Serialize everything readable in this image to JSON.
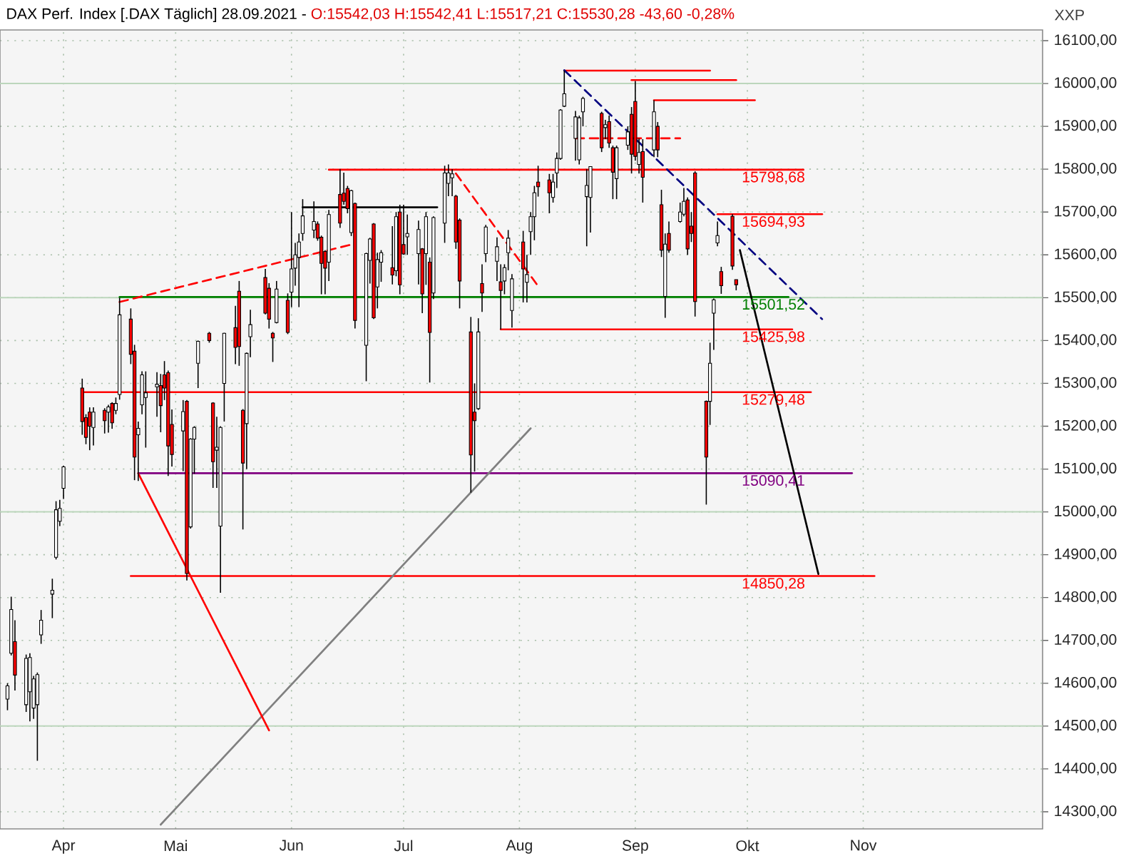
{
  "chart_data": {
    "type": "candlestick",
    "title": "DAX Perf. Index [.DAX Täglich] 28.09.2021 -",
    "subtitle": "O:15542,03 H:15542,41 L:15517,21 C:15530,28 -43,60 -0,28%",
    "ylabel": "XXP",
    "x": [
      "2021-03-17",
      "2021-03-18",
      "2021-03-19",
      "2021-03-22",
      "2021-03-23",
      "2021-03-24",
      "2021-03-25",
      "2021-03-26",
      "2021-03-29",
      "2021-03-30",
      "2021-03-31",
      "2021-04-01",
      "2021-04-06",
      "2021-04-07",
      "2021-04-08",
      "2021-04-09",
      "2021-04-12",
      "2021-04-13",
      "2021-04-14",
      "2021-04-15",
      "2021-04-16",
      "2021-04-19",
      "2021-04-20",
      "2021-04-21",
      "2021-04-22",
      "2021-04-23",
      "2021-04-26",
      "2021-04-27",
      "2021-04-28",
      "2021-04-29",
      "2021-04-30",
      "2021-05-03",
      "2021-05-04",
      "2021-05-05",
      "2021-05-06",
      "2021-05-07",
      "2021-05-10",
      "2021-05-11",
      "2021-05-12",
      "2021-05-13",
      "2021-05-14",
      "2021-05-17",
      "2021-05-18",
      "2021-05-19",
      "2021-05-20",
      "2021-05-21",
      "2021-05-25",
      "2021-05-26",
      "2021-05-27",
      "2021-05-28",
      "2021-05-31",
      "2021-06-01",
      "2021-06-02",
      "2021-06-03",
      "2021-06-04",
      "2021-06-07",
      "2021-06-08",
      "2021-06-09",
      "2021-06-10",
      "2021-06-11",
      "2021-06-14",
      "2021-06-15",
      "2021-06-16",
      "2021-06-17",
      "2021-06-18",
      "2021-06-21",
      "2021-06-22",
      "2021-06-23",
      "2021-06-24",
      "2021-06-25",
      "2021-06-28",
      "2021-06-29",
      "2021-06-30",
      "2021-07-01",
      "2021-07-02",
      "2021-07-05",
      "2021-07-06",
      "2021-07-07",
      "2021-07-08",
      "2021-07-09",
      "2021-07-12",
      "2021-07-13",
      "2021-07-14",
      "2021-07-15",
      "2021-07-16",
      "2021-07-19",
      "2021-07-20",
      "2021-07-21",
      "2021-07-22",
      "2021-07-23",
      "2021-07-26",
      "2021-07-27",
      "2021-07-28",
      "2021-07-29",
      "2021-07-30",
      "2021-08-02",
      "2021-08-03",
      "2021-08-04",
      "2021-08-05",
      "2021-08-06",
      "2021-08-09",
      "2021-08-10",
      "2021-08-11",
      "2021-08-12",
      "2021-08-13",
      "2021-08-16",
      "2021-08-17",
      "2021-08-18",
      "2021-08-19",
      "2021-08-20",
      "2021-08-23",
      "2021-08-24",
      "2021-08-25",
      "2021-08-26",
      "2021-08-27",
      "2021-08-30",
      "2021-08-31",
      "2021-09-01",
      "2021-09-02",
      "2021-09-03",
      "2021-09-06",
      "2021-09-07",
      "2021-09-08",
      "2021-09-09",
      "2021-09-10",
      "2021-09-13",
      "2021-09-14",
      "2021-09-15",
      "2021-09-16",
      "2021-09-17",
      "2021-09-20",
      "2021-09-21",
      "2021-09-22",
      "2021-09-23",
      "2021-09-24",
      "2021-09-27",
      "2021-09-28"
    ],
    "ohlc": [
      [
        14563,
        14600,
        14537,
        14594
      ],
      [
        14670,
        14802,
        14665,
        14772
      ],
      [
        14697,
        14747,
        14583,
        14619
      ],
      [
        14550,
        14667,
        14533,
        14658
      ],
      [
        14580,
        14670,
        14511,
        14660
      ],
      [
        14542,
        14617,
        14517,
        14610
      ],
      [
        14550,
        14625,
        14419,
        14620
      ],
      [
        14713,
        14771,
        14692,
        14747
      ],
      [
        14808,
        14844,
        14752,
        14817
      ],
      [
        14894,
        15025,
        14889,
        15005
      ],
      [
        14978,
        15028,
        14967,
        15008
      ],
      [
        15055,
        15108,
        15030,
        15105
      ],
      [
        15289,
        15311,
        15180,
        15211
      ],
      [
        15220,
        15228,
        15158,
        15174
      ],
      [
        15233,
        15244,
        15144,
        15200
      ],
      [
        15197,
        15244,
        15155,
        15233
      ],
      [
        15237,
        15242,
        15183,
        15213
      ],
      [
        15233,
        15250,
        15185,
        15245
      ],
      [
        15253,
        15256,
        15194,
        15208
      ],
      [
        15237,
        15267,
        15228,
        15253
      ],
      [
        15274,
        15500,
        15262,
        15460
      ],
      [
        15450,
        15475,
        15345,
        15368
      ],
      [
        15375,
        15390,
        15074,
        15128
      ],
      [
        15180,
        15211,
        15072,
        15195
      ],
      [
        15250,
        15328,
        15228,
        15320
      ],
      [
        15267,
        15328,
        15150,
        15278
      ],
      [
        15292,
        15326,
        15222,
        15298
      ],
      [
        15295,
        15322,
        15186,
        15248
      ],
      [
        15320,
        15352,
        15261,
        15289
      ],
      [
        15325,
        15330,
        15084,
        15154
      ],
      [
        15204,
        15239,
        15106,
        15134
      ],
      [
        15189,
        15261,
        15095,
        15234
      ],
      [
        15258,
        15261,
        14840,
        14856
      ],
      [
        14965,
        15172,
        14961,
        15170
      ],
      [
        15170,
        15200,
        15089,
        15197
      ],
      [
        15347,
        15400,
        15289,
        15398
      ],
      [
        15417,
        15420,
        15395,
        15400
      ],
      [
        15254,
        15256,
        15056,
        15117
      ],
      [
        15144,
        15222,
        15056,
        15151
      ],
      [
        14967,
        15200,
        14811,
        15197
      ],
      [
        15300,
        15418,
        15211,
        15417
      ],
      [
        15430,
        15481,
        15345,
        15384
      ],
      [
        15515,
        15539,
        15341,
        15386
      ],
      [
        15237,
        15240,
        14959,
        15114
      ],
      [
        15206,
        15372,
        15100,
        15370
      ],
      [
        15409,
        15472,
        15361,
        15437
      ],
      [
        15547,
        15567,
        15461,
        15464
      ],
      [
        15522,
        15534,
        15428,
        15450
      ],
      [
        15417,
        15420,
        15350,
        15406
      ],
      [
        15442,
        15539,
        15440,
        15520
      ],
      [
        15494,
        15510,
        15415,
        15419
      ],
      [
        15513,
        15700,
        15478,
        15567
      ],
      [
        15569,
        15628,
        15528,
        15600
      ],
      [
        15594,
        15650,
        15478,
        15630
      ],
      [
        15650,
        15730,
        15633,
        15691
      ],
      [
        15658,
        15725,
        15639,
        15678
      ],
      [
        15672,
        15678,
        15633,
        15639
      ],
      [
        15641,
        15645,
        15508,
        15580
      ],
      [
        15608,
        15611,
        15508,
        15569
      ],
      [
        15583,
        15705,
        15539,
        15694
      ],
      [
        15741,
        15800,
        15663,
        15674
      ],
      [
        15744,
        15792,
        15717,
        15725
      ],
      [
        15755,
        15761,
        15697,
        15708
      ],
      [
        15652,
        15752,
        15644,
        15750
      ],
      [
        15720,
        15722,
        15428,
        15447
      ],
      [
        15389,
        15605,
        15305,
        15603
      ],
      [
        15587,
        15640,
        15533,
        15637
      ],
      [
        15672,
        15674,
        15450,
        15453
      ],
      [
        15525,
        15605,
        15475,
        15589
      ],
      [
        15583,
        15611,
        15537,
        15605
      ],
      [
        15570,
        15667,
        15531,
        15553
      ],
      [
        15563,
        15700,
        15550,
        15689
      ],
      [
        15700,
        15717,
        15508,
        15530
      ],
      [
        15624,
        15717,
        15600,
        15602
      ],
      [
        15642,
        15694,
        15600,
        15650
      ],
      [
        15603,
        15680,
        15531,
        15659
      ],
      [
        15614,
        15616,
        15464,
        15509
      ],
      [
        15603,
        15700,
        15530,
        15689
      ],
      [
        15583,
        15594,
        15302,
        15419
      ],
      [
        15511,
        15690,
        15497,
        15687
      ],
      [
        15674,
        15808,
        15628,
        15791
      ],
      [
        15767,
        15811,
        15737,
        15791
      ],
      [
        15780,
        15800,
        15737,
        15789
      ],
      [
        15737,
        15740,
        15614,
        15630
      ],
      [
        15681,
        15685,
        15475,
        15539
      ],
      [
        15420,
        15455,
        15045,
        15133
      ],
      [
        15233,
        15300,
        15094,
        15213
      ],
      [
        15241,
        15452,
        15238,
        15420
      ],
      [
        15533,
        15578,
        15467,
        15511
      ],
      [
        15603,
        15670,
        15583,
        15665
      ],
      [
        15585,
        15641,
        15539,
        15619
      ],
      [
        15537,
        15578,
        15426,
        15517
      ],
      [
        15539,
        15578,
        15508,
        15570
      ],
      [
        15605,
        15658,
        15564,
        15639
      ],
      [
        15470,
        15555,
        15430,
        15544
      ],
      [
        15630,
        15656,
        15489,
        15567
      ],
      [
        15536,
        15600,
        15489,
        15554
      ],
      [
        15654,
        15700,
        15600,
        15689
      ],
      [
        15689,
        15761,
        15634,
        15745
      ],
      [
        15770,
        15808,
        15736,
        15759
      ],
      [
        15775,
        15789,
        15697,
        15745
      ],
      [
        15734,
        15789,
        15722,
        15770
      ],
      [
        15791,
        15839,
        15756,
        15825
      ],
      [
        15825,
        15940,
        15822,
        15938
      ],
      [
        15947,
        16030,
        15945,
        15976
      ],
      [
        15872,
        15936,
        15820,
        15922
      ],
      [
        15822,
        15925,
        15811,
        15920
      ],
      [
        15934,
        15969,
        15900,
        15965
      ],
      [
        15736,
        15800,
        15620,
        15762
      ],
      [
        15734,
        15806,
        15652,
        15806
      ],
      [
        15930,
        15934,
        15840,
        15850
      ],
      [
        15897,
        15915,
        15870,
        15904
      ],
      [
        15911,
        15925,
        15850,
        15861
      ],
      [
        15850,
        15855,
        15730,
        15793
      ],
      [
        15778,
        15855,
        15730,
        15850
      ],
      [
        15856,
        15900,
        15845,
        15887
      ],
      [
        15928,
        15945,
        15790,
        15835
      ],
      [
        15958,
        16006,
        15820,
        15830
      ],
      [
        15811,
        15872,
        15790,
        15839
      ],
      [
        15841,
        15870,
        15722,
        15781
      ],
      [
        15845,
        15961,
        15828,
        15934
      ],
      [
        15900,
        15910,
        15828,
        15845
      ],
      [
        15717,
        15752,
        15595,
        15611
      ],
      [
        15503,
        15650,
        15453,
        15625
      ],
      [
        15650,
        15678,
        15605,
        15611
      ],
      [
        15678,
        15722,
        15675,
        15700
      ],
      [
        15695,
        15756,
        15690,
        15725
      ],
      [
        15728,
        15734,
        15600,
        15614
      ],
      [
        15667,
        15700,
        15630,
        15650
      ],
      [
        15791,
        15795,
        15456,
        15491
      ],
      [
        15258,
        15260,
        15017,
        15128
      ],
      [
        15258,
        15395,
        15203,
        15347
      ],
      [
        15464,
        15498,
        15378,
        15495
      ],
      [
        15628,
        15678,
        15620,
        15645
      ],
      [
        15561,
        15572,
        15509,
        15528
      ],
      [
        15690,
        15695,
        15565,
        15574
      ],
      [
        15542.03,
        15542.41,
        15517.21,
        15530.28
      ]
    ],
    "colors": [
      "#ffffff",
      "#ffffff",
      "#ff0000",
      "#ffffff",
      "#ffffff",
      "#ffffff",
      "#ffffff",
      "#ffffff",
      "#ffffff",
      "#ffffff",
      "#ffffff",
      "#ffffff",
      "#ff0000",
      "#ff0000",
      "#ff0000",
      "#ffffff",
      "#ff0000",
      "#ffffff",
      "#ff0000",
      "#ffffff",
      "#ffffff",
      "#ff0000",
      "#ff0000",
      "#ffffff",
      "#ffffff",
      "#ffffff",
      "#ffffff",
      "#ff0000",
      "#ff0000",
      "#ff0000",
      "#ff0000",
      "#ffffff",
      "#ff0000",
      "#ffffff",
      "#ffffff",
      "#ffffff",
      "#ff0000",
      "#ff0000",
      "#ffffff",
      "#ffffff",
      "#ffffff",
      "#ff0000",
      "#ff0000",
      "#ff0000",
      "#ffffff",
      "#ffffff",
      "#ff0000",
      "#ff0000",
      "#ff0000",
      "#ffffff",
      "#ff0000",
      "#ffffff",
      "#ffffff",
      "#ffffff",
      "#ffffff",
      "#ffffff",
      "#ff0000",
      "#ff0000",
      "#ff0000",
      "#ffffff",
      "#ff0000",
      "#ff0000",
      "#ff0000",
      "#ffffff",
      "#ff0000",
      "#ffffff",
      "#ffffff",
      "#ff0000",
      "#ffffff",
      "#ffffff",
      "#ff0000",
      "#ffffff",
      "#ff0000",
      "#ff0000",
      "#ffffff",
      "#ffffff",
      "#ff0000",
      "#ffffff",
      "#ff0000",
      "#ffffff",
      "#ffffff",
      "#ffffff",
      "#ffffff",
      "#ff0000",
      "#ff0000",
      "#ff0000",
      "#ff0000",
      "#ffffff",
      "#ff0000",
      "#ffffff",
      "#ffffff",
      "#ff0000",
      "#ffffff",
      "#ffffff",
      "#ffffff",
      "#ff0000",
      "#ffffff",
      "#ffffff",
      "#ffffff",
      "#ff0000",
      "#ff0000",
      "#ffffff",
      "#ffffff",
      "#ffffff",
      "#ffffff",
      "#ffffff",
      "#ffffff",
      "#ffffff",
      "#ffffff",
      "#ffffff",
      "#ff0000",
      "#ffffff",
      "#ff0000",
      "#ff0000",
      "#ffffff",
      "#ffffff",
      "#ff0000",
      "#ff0000",
      "#ffffff",
      "#ff0000",
      "#ffffff",
      "#ff0000",
      "#ff0000",
      "#ffffff",
      "#ff0000",
      "#ffffff",
      "#ffffff",
      "#ff0000",
      "#ff0000",
      "#ff0000",
      "#ff0000",
      "#ffffff",
      "#ffffff",
      "#ffffff",
      "#ff0000",
      "#ff0000",
      "#ff0000"
    ],
    "series": [
      {
        "type": "line",
        "color": "#ff0000",
        "x": [
          "2021-08-13",
          "2021-09-21"
        ],
        "values": [
          16030,
          16030
        ]
      },
      {
        "type": "line",
        "color": "#ff0000",
        "x": [
          "2021-08-31",
          "2021-09-28"
        ],
        "values": [
          16008,
          16008
        ]
      },
      {
        "type": "line",
        "color": "#ff0000",
        "x": [
          "2021-09-06",
          "2021-10-03"
        ],
        "values": [
          15961,
          15961
        ]
      },
      {
        "type": "line",
        "color": "#ff0000",
        "line_style": "dashed",
        "x": [
          "2021-08-16",
          "2021-09-13"
        ],
        "values": [
          15872,
          15872
        ]
      },
      {
        "type": "line",
        "name": "15798,68",
        "color": "#ff0000",
        "x": [
          "2021-06-11",
          "2021-10-16"
        ],
        "values": [
          15798.68,
          15798.68
        ]
      },
      {
        "type": "line",
        "color": "#000000",
        "x": [
          "2021-06-04",
          "2021-07-10"
        ],
        "values": [
          15711,
          15711
        ]
      },
      {
        "type": "line",
        "name": "15694,93",
        "color": "#ff0000",
        "x": [
          "2021-09-23",
          "2021-10-21"
        ],
        "values": [
          15694.93,
          15694.93
        ]
      },
      {
        "type": "line",
        "name": "15501,52",
        "color": "#008000",
        "x": [
          "2021-04-16",
          "2021-10-12"
        ],
        "values": [
          15501.52,
          15501.52
        ]
      },
      {
        "type": "line",
        "name": "15425,98",
        "color": "#ff0000",
        "x": [
          "2021-07-27",
          "2021-10-13"
        ],
        "values": [
          15425.98,
          15425.98
        ]
      },
      {
        "type": "line",
        "name": "15279,48",
        "color": "#ff0000",
        "x": [
          "2021-04-06",
          "2021-10-18"
        ],
        "values": [
          15279.48,
          15279.48
        ]
      },
      {
        "type": "line",
        "name": "15090,41",
        "color": "#800080",
        "x": [
          "2021-04-21",
          "2021-10-29"
        ],
        "values": [
          15090.41,
          15090.41
        ]
      },
      {
        "type": "line",
        "name": "14850,28",
        "color": "#ff0000",
        "x": [
          "2021-04-19",
          "2021-11-04"
        ],
        "values": [
          14850.28,
          14850.28
        ]
      },
      {
        "type": "line",
        "color": "#ff0000",
        "line_style": "dashed",
        "x": [
          "2021-04-16",
          "2021-06-17"
        ],
        "values": [
          15490,
          15624
        ]
      },
      {
        "type": "line",
        "color": "#ff0000",
        "line_style": "dashed",
        "x": [
          "2021-07-15",
          "2021-08-06"
        ],
        "values": [
          15790,
          15527
        ]
      },
      {
        "type": "line",
        "color": "#000080",
        "line_style": "dashed",
        "x": [
          "2021-08-13",
          "2021-10-21"
        ],
        "values": [
          16031,
          15450
        ]
      },
      {
        "type": "line",
        "color": "#808080",
        "x": [
          "2021-04-27",
          "2021-08-04"
        ],
        "values": [
          14270,
          15195
        ]
      },
      {
        "type": "line",
        "color": "#ff0000",
        "x": [
          "2021-04-21",
          "2021-05-26"
        ],
        "values": [
          15090,
          14490
        ]
      },
      {
        "type": "line",
        "color": "#000000",
        "x": [
          "2021-09-29",
          "2021-10-20"
        ],
        "values": [
          15611,
          14855
        ]
      }
    ],
    "xlim": [
      "2021-03-15",
      "2021-12-19"
    ],
    "xticks": [
      {
        "value": "2021-04-01",
        "label": "Apr"
      },
      {
        "value": "2021-05-01",
        "label": "Mai"
      },
      {
        "value": "2021-06-01",
        "label": "Jun"
      },
      {
        "value": "2021-07-01",
        "label": "Jul"
      },
      {
        "value": "2021-08-01",
        "label": "Aug"
      },
      {
        "value": "2021-09-01",
        "label": "Sep"
      },
      {
        "value": "2021-10-01",
        "label": "Okt"
      },
      {
        "value": "2021-11-01",
        "label": "Nov"
      }
    ],
    "ylim": [
      14260,
      16125
    ],
    "yticks": [
      {
        "value": 14300,
        "label": "14300,00"
      },
      {
        "value": 14400,
        "label": "14400,00"
      },
      {
        "value": 14500,
        "label": "14500,00"
      },
      {
        "value": 14600,
        "label": "14600,00"
      },
      {
        "value": 14700,
        "label": "14700,00"
      },
      {
        "value": 14800,
        "label": "14800,00"
      },
      {
        "value": 14900,
        "label": "14900,00"
      },
      {
        "value": 15000,
        "label": "15000,00"
      },
      {
        "value": 15100,
        "label": "15100,00"
      },
      {
        "value": 15200,
        "label": "15200,00"
      },
      {
        "value": 15300,
        "label": "15300,00"
      },
      {
        "value": 15400,
        "label": "15400,00"
      },
      {
        "value": 15500,
        "label": "15500,00"
      },
      {
        "value": 15600,
        "label": "15600,00"
      },
      {
        "value": 15700,
        "label": "15700,00"
      },
      {
        "value": 15800,
        "label": "15800,00"
      },
      {
        "value": 15900,
        "label": "15900,00"
      },
      {
        "value": 16000,
        "label": "16000,00"
      },
      {
        "value": 16100,
        "label": "16100,00"
      }
    ],
    "grid": true
  }
}
